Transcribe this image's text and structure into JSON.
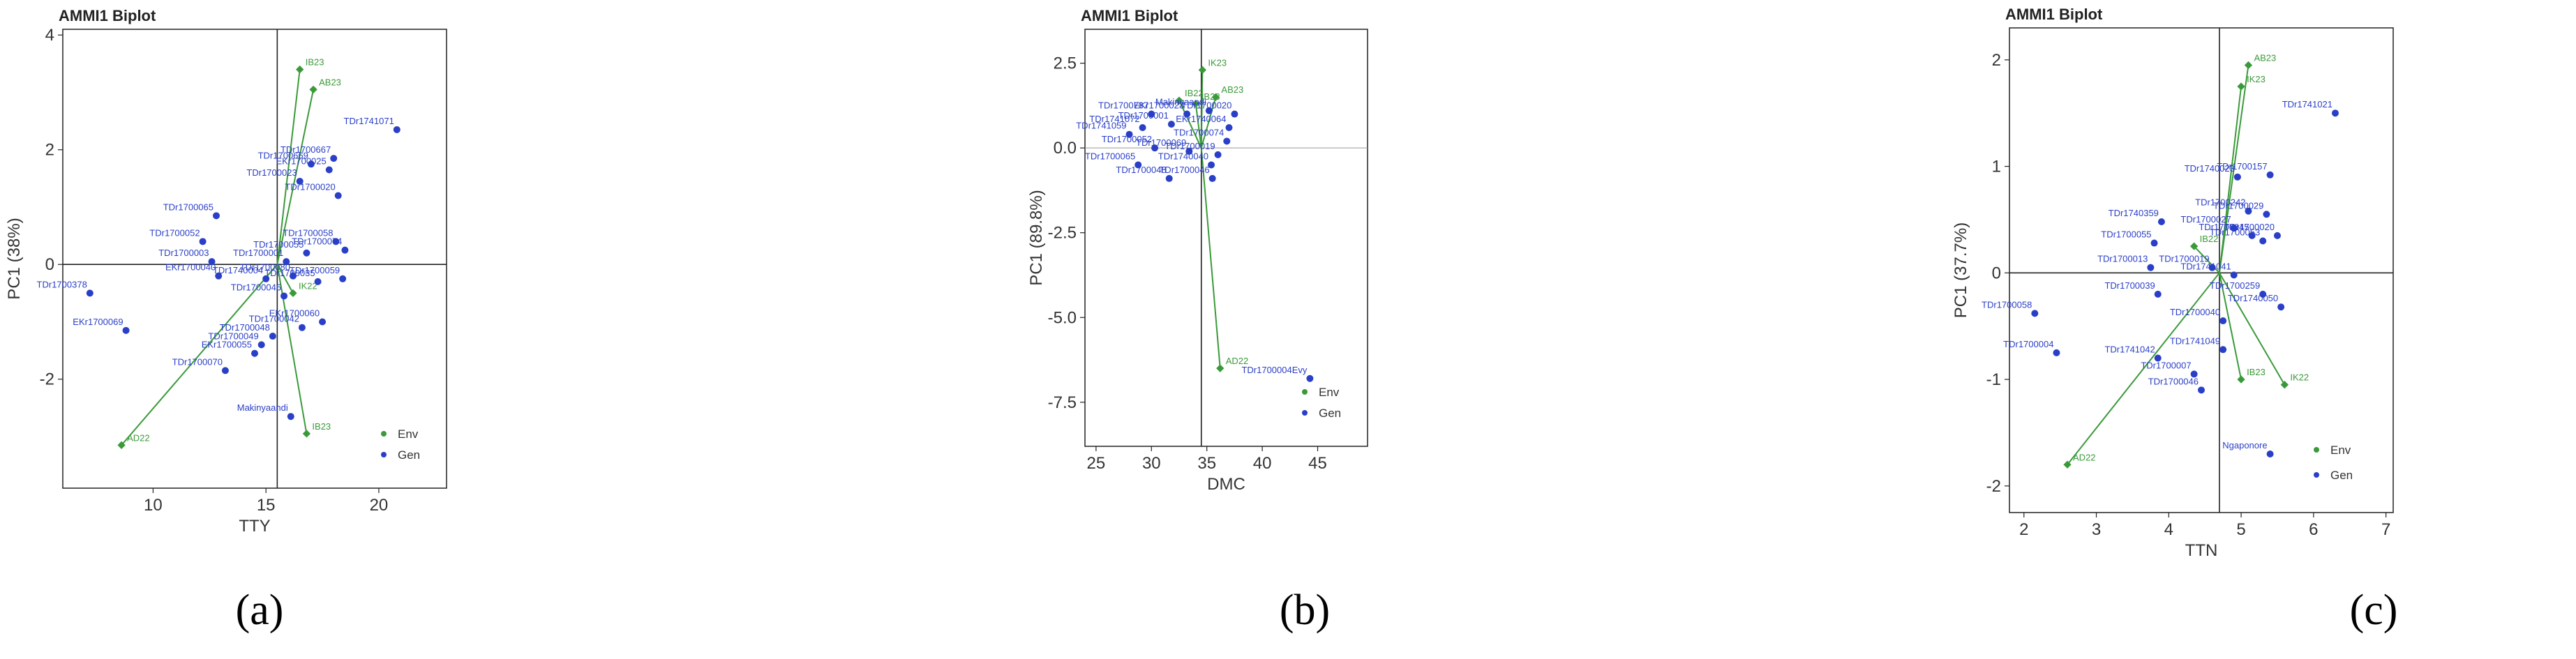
{
  "colors": {
    "env": "#3a9a3a",
    "gen": "#2a3fc8",
    "axis": "#222222",
    "refline": "#222222",
    "plotbg": "#ffffff"
  },
  "panels": [
    {
      "caption": "(a)",
      "chart_data": {
        "type": "scatter",
        "title": "AMMI1 Biplot",
        "xlabel": "TTY",
        "ylabel": "PC1 (38%)",
        "xlim": [
          6,
          23
        ],
        "ylim": [
          -3.9,
          4.1
        ],
        "xticks": [
          10,
          15,
          20
        ],
        "yticks": [
          -2,
          0,
          2,
          4
        ],
        "x_ref": 15.5,
        "y_ref": 0,
        "legend": {
          "placement": "bottom-right",
          "entries": [
            "Env",
            "Gen"
          ]
        },
        "origin": [
          15.5,
          0
        ],
        "env": [
          {
            "label": "IB23",
            "x": 16.5,
            "y": 3.4
          },
          {
            "label": "AB23",
            "x": 17.1,
            "y": 3.05
          },
          {
            "label": "AD22",
            "x": 8.6,
            "y": -3.15
          },
          {
            "label": "IB23",
            "x": 16.8,
            "y": -2.95
          },
          {
            "label": "IK22",
            "x": 16.2,
            "y": -0.5
          }
        ],
        "gen": [
          {
            "label": "TDr1741071",
            "x": 20.8,
            "y": 2.35
          },
          {
            "label": "TDr1700667",
            "x": 18.0,
            "y": 1.85
          },
          {
            "label": "TDr1700669",
            "x": 17.0,
            "y": 1.75
          },
          {
            "label": "EKr1700025",
            "x": 17.8,
            "y": 1.65
          },
          {
            "label": "TDr1700023",
            "x": 16.5,
            "y": 1.45
          },
          {
            "label": "TDr1700020",
            "x": 18.2,
            "y": 1.2
          },
          {
            "label": "TDr1700065",
            "x": 12.8,
            "y": 0.85
          },
          {
            "label": "TDr1700052",
            "x": 12.2,
            "y": 0.4
          },
          {
            "label": "TDr1700058",
            "x": 18.1,
            "y": 0.4
          },
          {
            "label": "TDr1700074",
            "x": 18.5,
            "y": 0.25
          },
          {
            "label": "TDr1700003",
            "x": 12.6,
            "y": 0.05
          },
          {
            "label": "TDr1700055",
            "x": 16.8,
            "y": 0.2
          },
          {
            "label": "TDr1700001",
            "x": 15.9,
            "y": 0.05
          },
          {
            "label": "TDr1700378",
            "x": 7.2,
            "y": -0.5
          },
          {
            "label": "EKr1700040",
            "x": 12.9,
            "y": -0.2
          },
          {
            "label": "TDr1740004",
            "x": 15.0,
            "y": -0.25
          },
          {
            "label": "TDr1700080",
            "x": 16.2,
            "y": -0.2
          },
          {
            "label": "TDr1700059",
            "x": 18.4,
            "y": -0.25
          },
          {
            "label": "TDr1700035",
            "x": 17.3,
            "y": -0.3
          },
          {
            "label": "TDr1700046",
            "x": 15.8,
            "y": -0.55
          },
          {
            "label": "EKr1700060",
            "x": 17.5,
            "y": -1.0
          },
          {
            "label": "TDr1700048",
            "x": 15.3,
            "y": -1.25
          },
          {
            "label": "TDr1700049",
            "x": 14.8,
            "y": -1.4
          },
          {
            "label": "EKr1700055",
            "x": 14.5,
            "y": -1.55
          },
          {
            "label": "TDr1700070",
            "x": 13.2,
            "y": -1.85
          },
          {
            "label": "EKr1700069",
            "x": 8.8,
            "y": -1.15
          },
          {
            "label": "Makinyaandi",
            "x": 16.1,
            "y": -2.65
          },
          {
            "label": "TDr1700042",
            "x": 16.6,
            "y": -1.1
          }
        ]
      }
    },
    {
      "caption": "(b)",
      "chart_data": {
        "type": "scatter",
        "title": "AMMI1 Biplot",
        "xlabel": "DMC",
        "ylabel": "PC1 (89.8%)",
        "xlim": [
          24,
          49.5
        ],
        "ylim": [
          -8.8,
          3.5
        ],
        "xticks": [
          25,
          30,
          35,
          40,
          45
        ],
        "yticks": [
          -7.5,
          -5.0,
          -2.5,
          0.0,
          2.5
        ],
        "x_ref": 34.5,
        "y_ref": 0,
        "legend": {
          "placement": "bottom-right",
          "entries": [
            "Env",
            "Gen"
          ]
        },
        "origin": [
          34.5,
          0
        ],
        "env": [
          {
            "label": "IK23",
            "x": 34.6,
            "y": 2.3
          },
          {
            "label": "IB22",
            "x": 32.5,
            "y": 1.4
          },
          {
            "label": "IB23",
            "x": 34.0,
            "y": 1.3
          },
          {
            "label": "AB23",
            "x": 35.8,
            "y": 1.5
          },
          {
            "label": "AD22",
            "x": 36.2,
            "y": -6.5
          }
        ],
        "gen": [
          {
            "label": "TDr1700787",
            "x": 30.0,
            "y": 1.0
          },
          {
            "label": "EKr1700023",
            "x": 33.2,
            "y": 1.0
          },
          {
            "label": "Makinyaandi",
            "x": 35.2,
            "y": 1.1
          },
          {
            "label": "TDr1700020",
            "x": 37.5,
            "y": 1.0
          },
          {
            "label": "TDr1741072",
            "x": 29.2,
            "y": 0.6
          },
          {
            "label": "TDr1700001",
            "x": 31.8,
            "y": 0.7
          },
          {
            "label": "EKr1740064",
            "x": 37.0,
            "y": 0.6
          },
          {
            "label": "TDr1741059",
            "x": 28.0,
            "y": 0.4
          },
          {
            "label": "TDr1700074",
            "x": 36.8,
            "y": 0.2
          },
          {
            "label": "TDr1700052",
            "x": 30.3,
            "y": 0.0
          },
          {
            "label": "TDr1700069",
            "x": 33.4,
            "y": -0.1
          },
          {
            "label": "TDr1700019",
            "x": 36.0,
            "y": -0.2
          },
          {
            "label": "TDr1700065",
            "x": 28.8,
            "y": -0.5
          },
          {
            "label": "TDr1740040",
            "x": 35.4,
            "y": -0.5
          },
          {
            "label": "TDr1700048",
            "x": 31.6,
            "y": -0.9
          },
          {
            "label": "TDr1700046",
            "x": 35.5,
            "y": -0.9
          },
          {
            "label": "TDr1700004Evy",
            "x": 44.3,
            "y": -6.8
          }
        ]
      }
    },
    {
      "caption": "(c)",
      "chart_data": {
        "type": "scatter",
        "title": "AMMI1 Biplot",
        "xlabel": "TTN",
        "ylabel": "PC1 (37.7%)",
        "xlim": [
          1.8,
          7.1
        ],
        "ylim": [
          -2.25,
          2.3
        ],
        "xticks": [
          2,
          3,
          4,
          5,
          6,
          7
        ],
        "yticks": [
          -2,
          -1,
          0,
          1,
          2
        ],
        "x_ref": 4.7,
        "y_ref": 0,
        "legend": {
          "placement": "bottom-right",
          "entries": [
            "Env",
            "Gen"
          ]
        },
        "origin": [
          4.7,
          0
        ],
        "env": [
          {
            "label": "AB23",
            "x": 5.1,
            "y": 1.95
          },
          {
            "label": "IK23",
            "x": 5.0,
            "y": 1.75
          },
          {
            "label": "IB22",
            "x": 4.35,
            "y": 0.25
          },
          {
            "label": "IK22",
            "x": 5.6,
            "y": -1.05
          },
          {
            "label": "IB23",
            "x": 5.0,
            "y": -1.0
          },
          {
            "label": "AD22",
            "x": 2.6,
            "y": -1.8
          }
        ],
        "gen": [
          {
            "label": "TDr1741021",
            "x": 6.3,
            "y": 1.5
          },
          {
            "label": "TDr1740023",
            "x": 4.95,
            "y": 0.9
          },
          {
            "label": "TDr1700157",
            "x": 5.4,
            "y": 0.92
          },
          {
            "label": "TDr1700242",
            "x": 5.1,
            "y": 0.58
          },
          {
            "label": "TDr1700029",
            "x": 5.35,
            "y": 0.55
          },
          {
            "label": "TDr1740359",
            "x": 3.9,
            "y": 0.48
          },
          {
            "label": "TDr1700027",
            "x": 4.9,
            "y": 0.42
          },
          {
            "label": "TDr1700020",
            "x": 5.5,
            "y": 0.35
          },
          {
            "label": "TDr1700055",
            "x": 3.8,
            "y": 0.28
          },
          {
            "label": "TDr1700045",
            "x": 5.15,
            "y": 0.35
          },
          {
            "label": "TDr1700053",
            "x": 5.3,
            "y": 0.3
          },
          {
            "label": "TDr1700013",
            "x": 3.75,
            "y": 0.05
          },
          {
            "label": "TDr1700019",
            "x": 4.6,
            "y": 0.05
          },
          {
            "label": "TDr1741041",
            "x": 4.9,
            "y": -0.02
          },
          {
            "label": "TDr1700058",
            "x": 2.15,
            "y": -0.38
          },
          {
            "label": "TDr1700039",
            "x": 3.85,
            "y": -0.2
          },
          {
            "label": "TDr1700259",
            "x": 5.3,
            "y": -0.2
          },
          {
            "label": "TDr1740050",
            "x": 5.55,
            "y": -0.32
          },
          {
            "label": "TDr1700040",
            "x": 4.75,
            "y": -0.45
          },
          {
            "label": "TDr1700004",
            "x": 2.45,
            "y": -0.75
          },
          {
            "label": "TDr1741042",
            "x": 3.85,
            "y": -0.8
          },
          {
            "label": "TDr1741049",
            "x": 4.75,
            "y": -0.72
          },
          {
            "label": "TDr1700007",
            "x": 4.35,
            "y": -0.95
          },
          {
            "label": "TDr1700046",
            "x": 4.45,
            "y": -1.1
          },
          {
            "label": "Ngaponore",
            "x": 5.4,
            "y": -1.7
          }
        ]
      }
    }
  ]
}
